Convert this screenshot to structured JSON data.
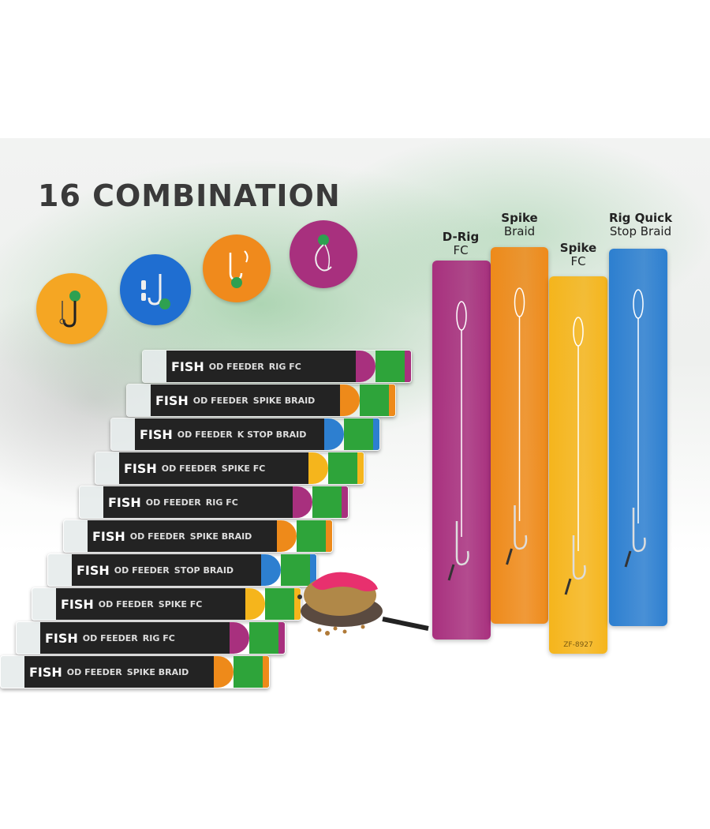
{
  "title": "16 COMBINATION",
  "colors": {
    "purple": "#a8307e",
    "orange": "#ee8a1a",
    "yellow": "#f5b51c",
    "blue": "#2d7fd0",
    "pack_green": "#2ea43a"
  },
  "icons": [
    "hook-bead-icon",
    "swivel-hook-icon",
    "double-hook-icon",
    "loop-hook-icon"
  ],
  "rigs": [
    {
      "name": "D-Rig",
      "type": "FC",
      "color": "#a8307e"
    },
    {
      "name": "Spike",
      "type": "Braid",
      "color": "#ee8a1a"
    },
    {
      "name": "Spike",
      "type": "FC",
      "color": "#f5b51c",
      "code": "ZF-8927"
    },
    {
      "name": "Rig Quick",
      "type": "Stop Braid",
      "color": "#2d7fd0"
    }
  ],
  "packs": [
    {
      "brand": "FISH",
      "line": "OD FEEDER",
      "type": "SPIKE BRAID",
      "accent": "#ee8a1a"
    },
    {
      "brand": "FISH",
      "line": "OD FEEDER",
      "type": "RIG FC",
      "accent": "#a8307e"
    },
    {
      "brand": "FISH",
      "line": "OD FEEDER",
      "type": "SPIKE FC",
      "accent": "#f5b51c"
    },
    {
      "brand": "FISH",
      "line": "OD FEEDER",
      "type": "STOP BRAID",
      "accent": "#2d7fd0"
    },
    {
      "brand": "FISH",
      "line": "OD FEEDER",
      "type": "SPIKE BRAID",
      "accent": "#ee8a1a"
    },
    {
      "brand": "FISH",
      "line": "OD FEEDER",
      "type": "RIG FC",
      "accent": "#a8307e"
    },
    {
      "brand": "FISH",
      "line": "OD FEEDER",
      "type": "SPIKE FC",
      "accent": "#f5b51c"
    },
    {
      "brand": "FISH",
      "line": "OD FEEDER",
      "type": "K STOP BRAID",
      "accent": "#2d7fd0"
    },
    {
      "brand": "FISH",
      "line": "OD FEEDER",
      "type": "SPIKE BRAID",
      "accent": "#ee8a1a"
    },
    {
      "brand": "FISH",
      "line": "OD FEEDER",
      "type": "RIG FC",
      "accent": "#a8307e"
    }
  ]
}
